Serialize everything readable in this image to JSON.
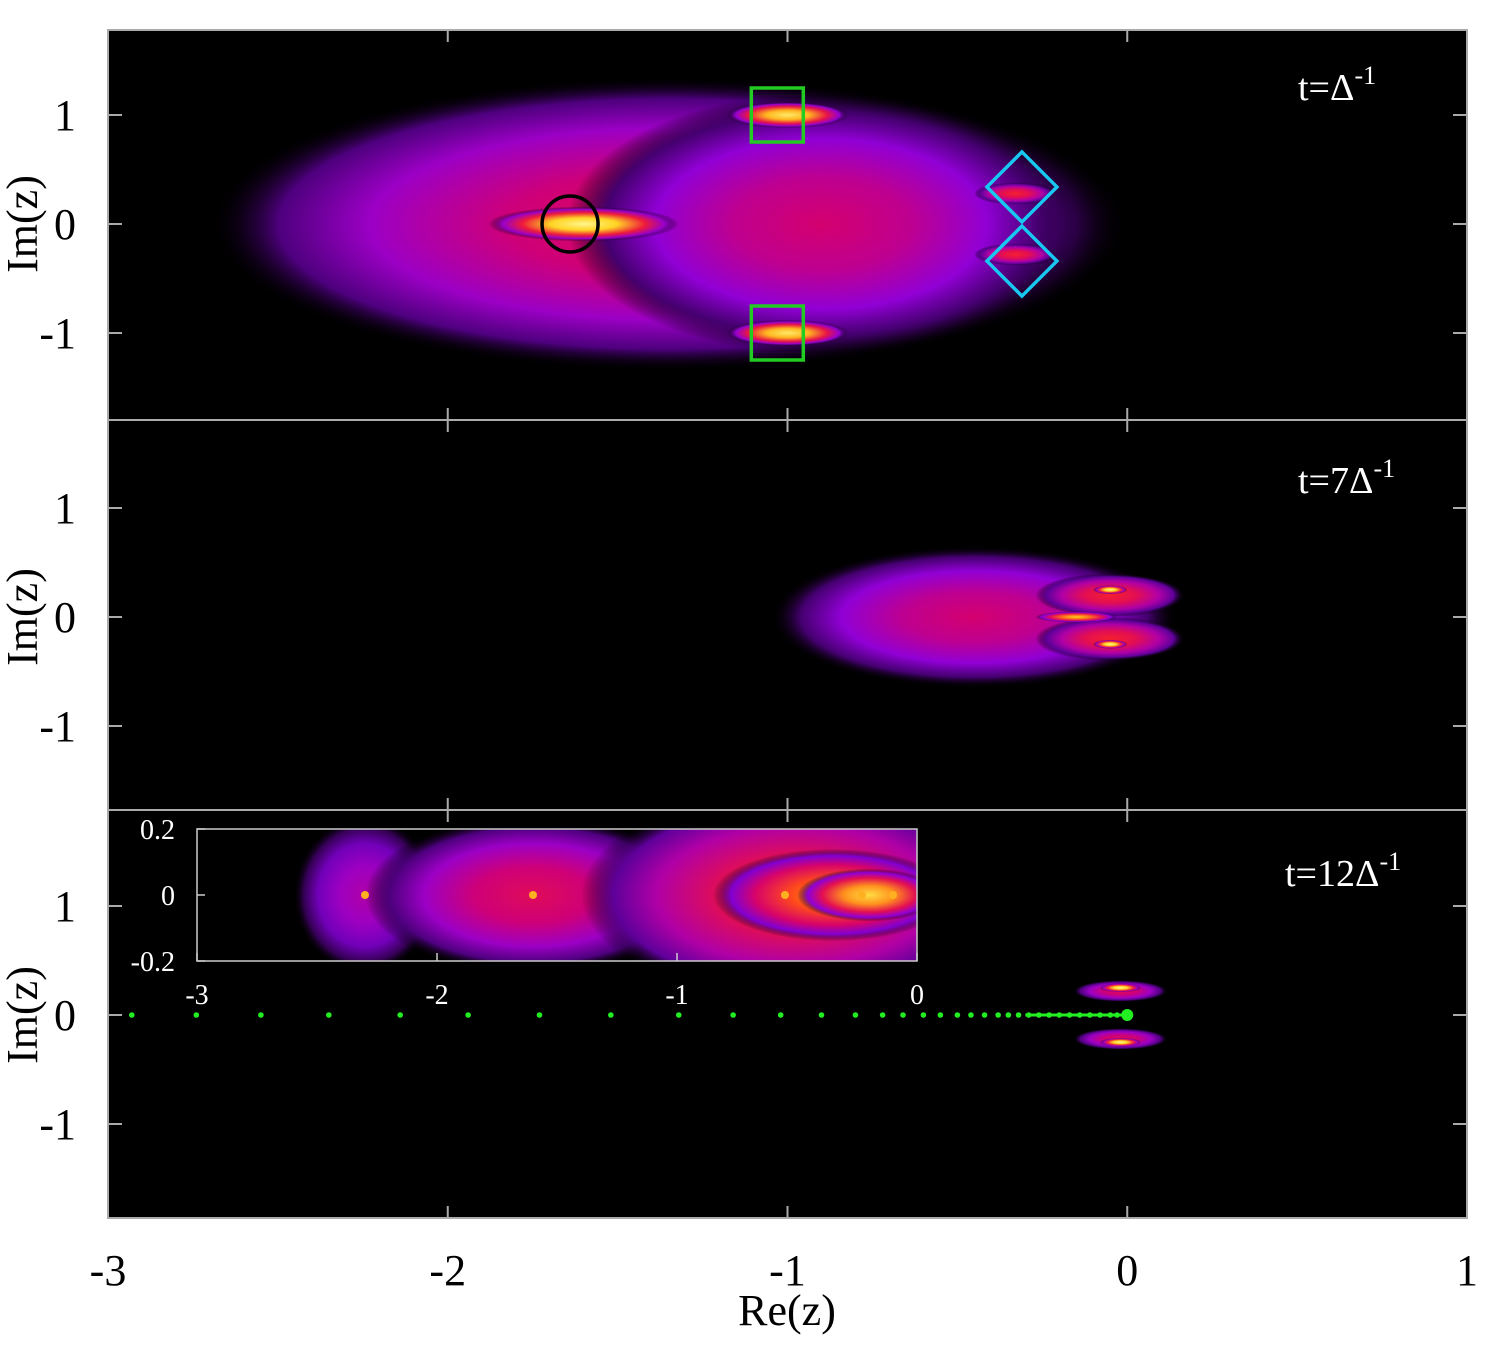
{
  "chart_data": {
    "type": "heatmap",
    "xlabel": "Re(z)",
    "ylabel": "Im(z)",
    "xlim": [
      -3,
      1
    ],
    "ylim": [
      -1.8,
      1.8
    ],
    "x_ticks": [
      "-3",
      "-2",
      "-1",
      "0",
      "1"
    ],
    "y_ticks": [
      "1",
      "0",
      "-1"
    ],
    "colormap": [
      "#000000",
      "#8a00e0",
      "#d4006e",
      "#ff2a1a",
      "#ffd21f",
      "#ffffb0"
    ],
    "panels": [
      {
        "label_prefix": "t=",
        "label_base": "Δ",
        "label_exp": "-1",
        "blobs": [
          {
            "x": -1.35,
            "y": 0,
            "rx": 1.35,
            "ry": 1.35,
            "level": 0.45
          },
          {
            "x": -0.9,
            "y": 0,
            "rx": 0.75,
            "ry": 1.2,
            "level": 0.4
          },
          {
            "x": -1.6,
            "y": 0,
            "rx": 0.28,
            "ry": 0.16,
            "level": 0.95
          },
          {
            "x": -1.0,
            "y": 1.0,
            "rx": 0.18,
            "ry": 0.12,
            "level": 0.9
          },
          {
            "x": -1.0,
            "y": -1.0,
            "rx": 0.18,
            "ry": 0.12,
            "level": 0.9
          },
          {
            "x": -0.33,
            "y": 0.28,
            "rx": 0.12,
            "ry": 0.1,
            "level": 0.55
          },
          {
            "x": -0.33,
            "y": -0.28,
            "rx": 0.12,
            "ry": 0.1,
            "level": 0.55
          }
        ],
        "markers": [
          {
            "shape": "circle",
            "x": -1.64,
            "y": 0,
            "color": "#000000"
          },
          {
            "shape": "square",
            "x": -1.03,
            "y": 1.0,
            "color": "#22cc22"
          },
          {
            "shape": "square",
            "x": -1.03,
            "y": -1.0,
            "color": "#22cc22"
          },
          {
            "shape": "diamond",
            "x": -0.31,
            "y": 0.34,
            "color": "#19c8f0"
          },
          {
            "shape": "diamond",
            "x": -0.31,
            "y": -0.34,
            "color": "#19c8f0"
          }
        ]
      },
      {
        "label_prefix": "t=7",
        "label_base": "Δ",
        "label_exp": "-1",
        "blobs": [
          {
            "x": -0.45,
            "y": 0,
            "rx": 0.6,
            "ry": 0.65,
            "level": 0.4
          },
          {
            "x": -0.05,
            "y": 0.2,
            "rx": 0.22,
            "ry": 0.2,
            "level": 0.55
          },
          {
            "x": -0.05,
            "y": -0.2,
            "rx": 0.22,
            "ry": 0.2,
            "level": 0.55
          },
          {
            "x": -0.15,
            "y": 0,
            "rx": 0.12,
            "ry": 0.05,
            "level": 0.8
          },
          {
            "x": -0.05,
            "y": 0.25,
            "rx": 0.05,
            "ry": 0.04,
            "level": 0.95
          },
          {
            "x": -0.05,
            "y": -0.25,
            "rx": 0.05,
            "ry": 0.04,
            "level": 0.95
          }
        ]
      },
      {
        "label_prefix": "t=12",
        "label_base": "Δ",
        "label_exp": "-1",
        "blobs": [
          {
            "x": -0.02,
            "y": 0.22,
            "rx": 0.14,
            "ry": 0.1,
            "level": 0.45
          },
          {
            "x": -0.02,
            "y": -0.22,
            "rx": 0.14,
            "ry": 0.1,
            "level": 0.45
          },
          {
            "x": -0.02,
            "y": 0.25,
            "rx": 0.06,
            "ry": 0.04,
            "level": 0.95
          },
          {
            "x": -0.02,
            "y": -0.25,
            "rx": 0.06,
            "ry": 0.04,
            "level": 0.95
          }
        ],
        "dots": {
          "color": "#22ee22",
          "x": [
            -2.93,
            -2.74,
            -2.55,
            -2.35,
            -2.14,
            -1.94,
            -1.73,
            -1.52,
            -1.32,
            -1.16,
            -1.02,
            -0.9,
            -0.8,
            -0.72,
            -0.66,
            -0.6,
            -0.55,
            -0.5,
            -0.46,
            -0.42,
            -0.38,
            -0.35,
            -0.32,
            -0.29,
            -0.26,
            -0.23,
            -0.2,
            -0.17,
            -0.14,
            -0.11,
            -0.08,
            -0.05,
            -0.03,
            0.0
          ],
          "y": 0
        },
        "inset": {
          "xlim": [
            -3,
            0
          ],
          "ylim": [
            -0.2,
            0.2
          ],
          "x_ticks": [
            "-3",
            "-2",
            "-1",
            "0"
          ],
          "y_ticks": [
            "0.2",
            "0",
            "-0.2"
          ],
          "blobs": [
            {
              "x": -2.3,
              "y": 0,
              "rx": 0.3,
              "ry": 0.6,
              "level": 0.3
            },
            {
              "x": -1.6,
              "y": 0,
              "rx": 0.7,
              "ry": 0.6,
              "level": 0.45
            },
            {
              "x": -0.5,
              "y": 0,
              "rx": 0.9,
              "ry": 0.8,
              "level": 0.55
            },
            {
              "x": -0.35,
              "y": 0,
              "rx": 0.5,
              "ry": 0.35,
              "level": 0.75
            },
            {
              "x": -0.2,
              "y": 0,
              "rx": 0.3,
              "ry": 0.2,
              "level": 0.85
            }
          ],
          "points": [
            {
              "x": -2.3,
              "y": 0
            },
            {
              "x": -1.6,
              "y": 0
            },
            {
              "x": -0.55,
              "y": 0
            },
            {
              "x": -0.23,
              "y": 0
            },
            {
              "x": -0.1,
              "y": 0
            }
          ]
        }
      }
    ]
  }
}
